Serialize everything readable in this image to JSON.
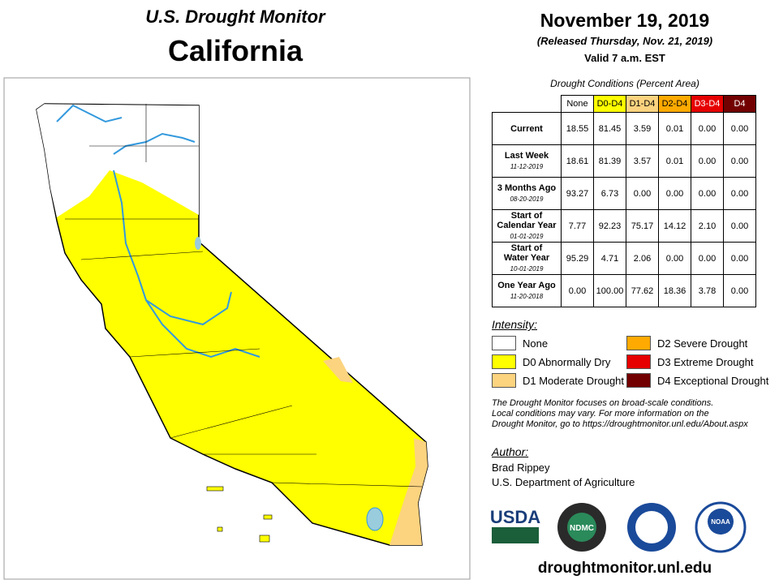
{
  "header": {
    "title": "U.S. Drought Monitor",
    "state": "California",
    "date": "November 19, 2019",
    "released": "(Released Thursday, Nov. 21, 2019)",
    "valid": "Valid 7 a.m. EST"
  },
  "table": {
    "caption": "Drought Conditions (Percent Area)",
    "columns": [
      "None",
      "D0-D4",
      "D1-D4",
      "D2-D4",
      "D3-D4",
      "D4"
    ],
    "rows": [
      {
        "label": [
          "Current"
        ],
        "values": [
          "18.55",
          "81.45",
          "3.59",
          "0.01",
          "0.00",
          "0.00"
        ]
      },
      {
        "label": [
          "Last Week"
        ],
        "date": "11-12-2019",
        "values": [
          "18.61",
          "81.39",
          "3.57",
          "0.01",
          "0.00",
          "0.00"
        ]
      },
      {
        "label": [
          "3 Months Ago"
        ],
        "date": "08-20-2019",
        "values": [
          "93.27",
          "6.73",
          "0.00",
          "0.00",
          "0.00",
          "0.00"
        ]
      },
      {
        "label": [
          "Start of",
          "Calendar Year"
        ],
        "date": "01-01-2019",
        "values": [
          "7.77",
          "92.23",
          "75.17",
          "14.12",
          "2.10",
          "0.00"
        ]
      },
      {
        "label": [
          "Start of",
          "Water Year"
        ],
        "date": "10-01-2019",
        "values": [
          "95.29",
          "4.71",
          "2.06",
          "0.00",
          "0.00",
          "0.00"
        ]
      },
      {
        "label": [
          "One Year Ago"
        ],
        "date": "11-20-2018",
        "values": [
          "0.00",
          "100.00",
          "77.62",
          "18.36",
          "3.78",
          "0.00"
        ]
      }
    ]
  },
  "legend": {
    "title": "Intensity:",
    "items": [
      {
        "label": "None",
        "color": "#ffffff"
      },
      {
        "label": "D0 Abnormally Dry",
        "color": "#ffff00"
      },
      {
        "label": "D1 Moderate Drought",
        "color": "#fcd37f"
      },
      {
        "label": "D2 Severe Drought",
        "color": "#ffaa00"
      },
      {
        "label": "D3 Extreme Drought",
        "color": "#e60000"
      },
      {
        "label": "D4 Exceptional Drought",
        "color": "#730000"
      }
    ]
  },
  "note": [
    "The Drought Monitor focuses on broad-scale conditions.",
    "Local conditions may vary. For more information on the",
    "Drought Monitor, go to https://droughtmonitor.unl.edu/About.aspx"
  ],
  "author": {
    "title": "Author:",
    "name": "Brad Rippey",
    "org": "U.S. Department of Agriculture"
  },
  "logos": [
    "USDA",
    "NDMC",
    "NOAA"
  ],
  "footer": "droughtmonitor.unl.edu"
}
